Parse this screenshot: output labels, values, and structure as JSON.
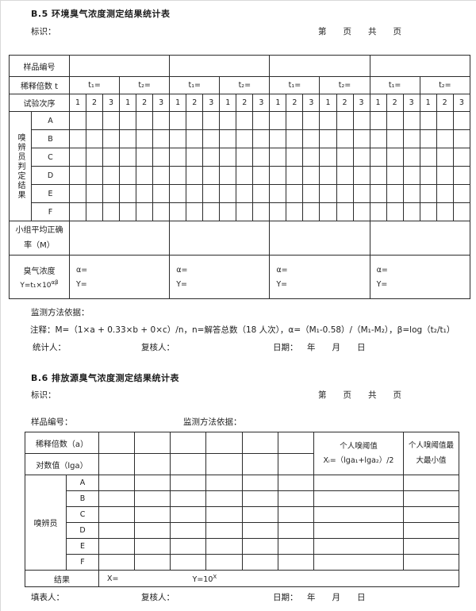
{
  "b5": {
    "heading": "B.5 环境臭气浓度测定结果统计表",
    "id_label": "标识：",
    "page_marker": "第　　页　　共　　页",
    "table": {
      "sample_no_label": "样品编号",
      "dilution_label": "稀释倍数 t",
      "t1": "t₁=",
      "t2": "t₂=",
      "trial_label": "试验次序",
      "trial_order": [
        "1",
        "2",
        "3"
      ],
      "panel_group_label": "嗅辨员判定结果",
      "panelists": [
        "A",
        "B",
        "C",
        "D",
        "E",
        "F"
      ],
      "avg_rate_label": "小组平均正确率（M）",
      "odor_title": "臭气浓度",
      "odor_formula_base": "Y=t₁×10",
      "odor_formula_sup": "αβ",
      "alpha_prompt": "α=",
      "y_prompt": "Y="
    },
    "notes": {
      "method_basis": "监测方法依据：",
      "annotation": "注释：M=（1×a + 0.33×b + 0×c）/n，n=解答总数（18 人次），α=（M₁-0.58）/（M₁-M₂），β=log（t₂/t₁）",
      "statistician": "统计人：",
      "reviewer": "复核人：",
      "date_label": "日期：",
      "date_ymd": "年　　月　　日"
    }
  },
  "b6": {
    "heading": "B.6 排放源臭气浓度测定结果统计表",
    "id_label": "标识：",
    "page_marker": "第　　页　　共　　页",
    "sample_no_label": "样品编号：",
    "method_basis": "监测方法依据：",
    "table": {
      "dilution_label": "稀释倍数（a）",
      "log_label": "对数值（lga）",
      "threshold_title": "个人嗅阈值",
      "threshold_formula": "Xᵢ=（lga₁+lga₂）/2",
      "minmax_label": "个人嗅阈值最大最小值",
      "panel_label": "嗅辨员",
      "panelists": [
        "A",
        "B",
        "C",
        "D",
        "E",
        "F"
      ],
      "result_label": "结果",
      "x_prompt": "X=",
      "y_base": "Y=10",
      "y_sup": "X"
    },
    "footer": {
      "filler": "填表人：",
      "reviewer": "复核人：",
      "date_label": "日期：",
      "date_ymd": "年　　月　　日"
    }
  }
}
